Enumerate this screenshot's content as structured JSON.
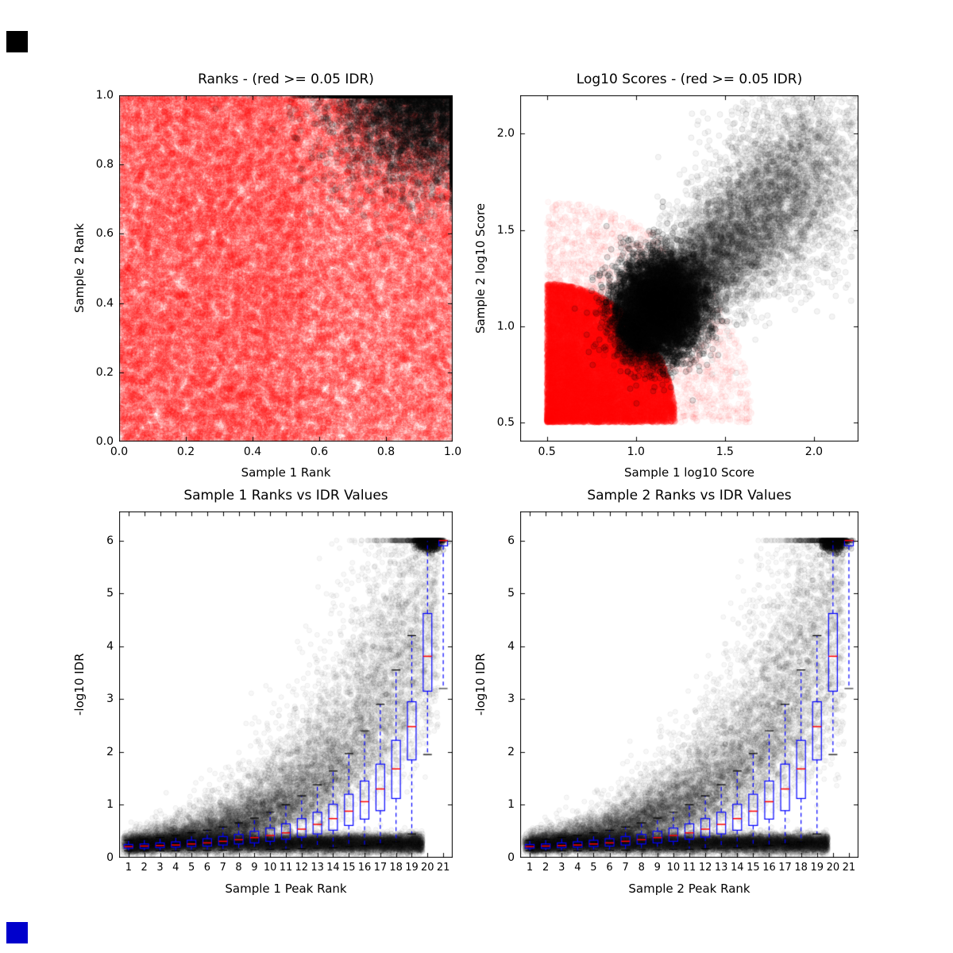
{
  "figure": {
    "background": "#ffffff",
    "text_color": "#000000",
    "decorations": [
      {
        "name": "top-left-square",
        "color": "#000000"
      },
      {
        "name": "bottom-left-square",
        "color": "#0000cc"
      }
    ]
  },
  "chart_data": [
    {
      "id": "ranks-scatter",
      "type": "scatter",
      "title": "Ranks - (red >= 0.05 IDR)",
      "xlabel": "Sample 1 Rank",
      "ylabel": "Sample 2 Rank",
      "xlim": [
        0.0,
        1.0
      ],
      "ylim": [
        0.0,
        1.0
      ],
      "grid": false,
      "legend": "none",
      "xticks": {
        "values": [
          0.0,
          0.2,
          0.4,
          0.6,
          0.8,
          1.0
        ],
        "labels": [
          "0.0",
          "0.2",
          "0.4",
          "0.6",
          "0.8",
          "1.0"
        ]
      },
      "yticks": {
        "values": [
          0.0,
          0.2,
          0.4,
          0.6,
          0.8,
          1.0
        ],
        "labels": [
          "0.0",
          "0.2",
          "0.4",
          "0.6",
          "0.8",
          "1.0"
        ]
      },
      "series": [
        {
          "name": "idr-ge-0.05-red",
          "color": "#ff0000",
          "alpha": 0.12,
          "radius": 3.5,
          "count": 28000,
          "dist": {
            "kind": "uniform",
            "xr": [
              0.0,
              1.0
            ],
            "yr": [
              0.0,
              1.0
            ]
          }
        },
        {
          "name": "idr-ge-0.05-red-dense-left",
          "color": "#ff0000",
          "alpha": 0.1,
          "radius": 3.5,
          "count": 5000,
          "dist": {
            "kind": "uniform",
            "xr": [
              0.0,
              0.55
            ],
            "yr": [
              0.0,
              1.0
            ]
          }
        },
        {
          "name": "idr-lt-0.05-black",
          "color": "#000000",
          "alpha": 0.16,
          "radius": 3.5,
          "count": 9000,
          "dist": {
            "kind": "gaussian",
            "cx": 0.93,
            "cy": 1.02,
            "sx": 0.14,
            "sy": 0.13,
            "clip": [
              0,
              1,
              0,
              1
            ]
          }
        }
      ]
    },
    {
      "id": "log10-scores-scatter",
      "type": "scatter",
      "title": "Log10 Scores - (red >= 0.05 IDR)",
      "xlabel": "Sample 1 log10 Score",
      "ylabel": "Sample 2 log10 Score",
      "xlim": [
        0.35,
        2.25
      ],
      "ylim": [
        0.4,
        2.2
      ],
      "grid": false,
      "legend": "none",
      "xticks": {
        "values": [
          0.5,
          1.0,
          1.5,
          2.0
        ],
        "labels": [
          "0.5",
          "1.0",
          "1.5",
          "2.0"
        ]
      },
      "yticks": {
        "values": [
          0.5,
          1.0,
          1.5,
          2.0
        ],
        "labels": [
          "0.5",
          "1.0",
          "1.5",
          "2.0"
        ]
      },
      "series": [
        {
          "name": "idr-ge-0.05-red-core",
          "color": "#ff0000",
          "alpha": 0.14,
          "radius": 3.5,
          "count": 20000,
          "dist": {
            "kind": "quarter_disc",
            "x0": 0.5,
            "y0": 0.5,
            "rmax": 0.72,
            "rpow": 0.6
          }
        },
        {
          "name": "idr-ge-0.05-red-fringe",
          "color": "#ff0000",
          "alpha": 0.05,
          "radius": 3.5,
          "count": 4000,
          "dist": {
            "kind": "quarter_disc",
            "x0": 0.5,
            "y0": 0.5,
            "rmax": 1.15,
            "rpow": 0.8
          }
        },
        {
          "name": "idr-lt-0.05-black-diagonal",
          "color": "#000000",
          "alpha": 0.08,
          "radius": 3.5,
          "count": 12000,
          "dist": {
            "kind": "diag",
            "x0": 0.98,
            "y0": 0.95,
            "dx": 1.08,
            "dy": 0.95,
            "tpow": 1.4,
            "s0": 0.05,
            "s1": 0.16
          }
        },
        {
          "name": "idr-lt-0.05-black-core",
          "color": "#000000",
          "alpha": 0.22,
          "radius": 3.5,
          "count": 7000,
          "dist": {
            "kind": "gaussian",
            "cx": 1.13,
            "cy": 1.1,
            "sx": 0.12,
            "sy": 0.13
          }
        }
      ]
    },
    {
      "id": "sample1-rank-vs-idr",
      "type": "scatter+boxplot",
      "title": "Sample 1 Ranks vs IDR Values",
      "xlabel": "Sample 1 Peak Rank",
      "ylabel": "-log10 IDR",
      "xlim": [
        0.4,
        21.6
      ],
      "ylim": [
        0,
        6.55
      ],
      "grid": false,
      "legend": "none",
      "xticks": {
        "values": [
          1,
          2,
          3,
          4,
          5,
          6,
          7,
          8,
          9,
          10,
          11,
          12,
          13,
          14,
          15,
          16,
          17,
          18,
          19,
          20,
          21
        ],
        "labels": [
          "1",
          "2",
          "3",
          "4",
          "5",
          "6",
          "7",
          "8",
          "9",
          "10",
          "11",
          "12",
          "13",
          "14",
          "15",
          "16",
          "17",
          "18",
          "19",
          "20",
          "21"
        ]
      },
      "yticks": {
        "values": [
          0,
          1,
          2,
          3,
          4,
          5,
          6
        ],
        "labels": [
          "0",
          "1",
          "2",
          "3",
          "4",
          "5",
          "6"
        ]
      },
      "box_style": {
        "box_color": "#0000ff",
        "median_color": "#ff0000",
        "whisker_color": "#0000ff",
        "cap_color": "#000000",
        "width": 0.55
      },
      "series": [
        {
          "name": "idr-scatter-band",
          "color": "#000000",
          "alpha": 0.06,
          "radius": 3,
          "count": 13000,
          "dist": {
            "kind": "band",
            "xr": [
              0.6,
              19.7
            ],
            "xpow": 0.85,
            "ymean": 0.27,
            "ysd": 0.085,
            "clip": [
              0.4,
              21.6,
              0.03,
              6
            ]
          }
        },
        {
          "name": "idr-scatter-curve",
          "color": "#000000",
          "alpha": 0.06,
          "radius": 3,
          "count": 12000,
          "dist": {
            "kind": "expcurve",
            "xr": [
              1,
              20.7
            ],
            "a": 0.22,
            "k": 0.165,
            "lnsd": 0.38,
            "ymax": 6
          }
        },
        {
          "name": "idr-cap-cluster",
          "color": "#000000",
          "alpha": 0.2,
          "radius": 3,
          "count": 700,
          "dist": {
            "kind": "gaussian",
            "cx": 20.05,
            "cy": 6.0,
            "sx": 0.4,
            "sy": 0.1,
            "clip": [
              18.6,
              21.4,
              5.0,
              6.0
            ]
          }
        }
      ],
      "boxes": [
        {
          "pos": 1,
          "whislo": 0.13,
          "q1": 0.18,
          "med": 0.21,
          "q3": 0.25,
          "whishi": 0.33
        },
        {
          "pos": 2,
          "whislo": 0.13,
          "q1": 0.18,
          "med": 0.22,
          "q3": 0.26,
          "whishi": 0.35
        },
        {
          "pos": 3,
          "whislo": 0.13,
          "q1": 0.19,
          "med": 0.23,
          "q3": 0.28,
          "whishi": 0.38
        },
        {
          "pos": 4,
          "whislo": 0.13,
          "q1": 0.2,
          "med": 0.24,
          "q3": 0.3,
          "whishi": 0.42
        },
        {
          "pos": 5,
          "whislo": 0.14,
          "q1": 0.21,
          "med": 0.26,
          "q3": 0.33,
          "whishi": 0.47
        },
        {
          "pos": 6,
          "whislo": 0.14,
          "q1": 0.22,
          "med": 0.28,
          "q3": 0.36,
          "whishi": 0.52
        },
        {
          "pos": 7,
          "whislo": 0.14,
          "q1": 0.24,
          "med": 0.31,
          "q3": 0.4,
          "whishi": 0.58
        },
        {
          "pos": 8,
          "whislo": 0.15,
          "q1": 0.26,
          "med": 0.34,
          "q3": 0.44,
          "whishi": 0.66
        },
        {
          "pos": 9,
          "whislo": 0.15,
          "q1": 0.28,
          "med": 0.38,
          "q3": 0.5,
          "whishi": 0.75
        },
        {
          "pos": 10,
          "whislo": 0.16,
          "q1": 0.31,
          "med": 0.42,
          "q3": 0.56,
          "whishi": 0.86
        },
        {
          "pos": 11,
          "whislo": 0.16,
          "q1": 0.35,
          "med": 0.47,
          "q3": 0.64,
          "whishi": 1.0
        },
        {
          "pos": 12,
          "whislo": 0.17,
          "q1": 0.39,
          "med": 0.54,
          "q3": 0.74,
          "whishi": 1.17
        },
        {
          "pos": 13,
          "whislo": 0.18,
          "q1": 0.45,
          "med": 0.63,
          "q3": 0.86,
          "whishi": 1.38
        },
        {
          "pos": 14,
          "whislo": 0.19,
          "q1": 0.52,
          "med": 0.74,
          "q3": 1.01,
          "whishi": 1.64
        },
        {
          "pos": 15,
          "whislo": 0.21,
          "q1": 0.61,
          "med": 0.88,
          "q3": 1.2,
          "whishi": 1.97
        },
        {
          "pos": 16,
          "whislo": 0.23,
          "q1": 0.73,
          "med": 1.06,
          "q3": 1.45,
          "whishi": 2.4
        },
        {
          "pos": 17,
          "whislo": 0.26,
          "q1": 0.89,
          "med": 1.3,
          "q3": 1.77,
          "whishi": 2.9
        },
        {
          "pos": 18,
          "whislo": 0.3,
          "q1": 1.12,
          "med": 1.68,
          "q3": 2.22,
          "whishi": 3.55
        },
        {
          "pos": 19,
          "whislo": 0.45,
          "q1": 1.85,
          "med": 2.48,
          "q3": 2.95,
          "whishi": 4.2
        },
        {
          "pos": 20,
          "whislo": 1.95,
          "q1": 3.15,
          "med": 3.81,
          "q3": 4.62,
          "whishi": 6.0
        },
        {
          "pos": 21,
          "whislo": 3.2,
          "q1": 5.9,
          "med": 6.0,
          "q3": 6.0,
          "whishi": 6.0
        }
      ]
    },
    {
      "id": "sample2-rank-vs-idr",
      "type": "scatter+boxplot",
      "title": "Sample 2 Ranks vs IDR Values",
      "xlabel": "Sample 2 Peak Rank",
      "ylabel": "-log10 IDR",
      "xlim": [
        0.4,
        21.6
      ],
      "ylim": [
        0,
        6.55
      ],
      "grid": false,
      "legend": "none",
      "xticks": {
        "values": [
          1,
          2,
          3,
          4,
          5,
          6,
          7,
          8,
          9,
          10,
          11,
          12,
          13,
          14,
          15,
          16,
          17,
          18,
          19,
          20,
          21
        ],
        "labels": [
          "1",
          "2",
          "3",
          "4",
          "5",
          "6",
          "7",
          "8",
          "9",
          "10",
          "11",
          "12",
          "13",
          "14",
          "15",
          "16",
          "17",
          "18",
          "19",
          "20",
          "21"
        ]
      },
      "yticks": {
        "values": [
          0,
          1,
          2,
          3,
          4,
          5,
          6
        ],
        "labels": [
          "0",
          "1",
          "2",
          "3",
          "4",
          "5",
          "6"
        ]
      },
      "box_style": {
        "box_color": "#0000ff",
        "median_color": "#ff0000",
        "whisker_color": "#0000ff",
        "cap_color": "#000000",
        "width": 0.55
      },
      "series": [
        {
          "name": "idr-scatter-band",
          "color": "#000000",
          "alpha": 0.06,
          "radius": 3,
          "count": 13000,
          "dist": {
            "kind": "band",
            "xr": [
              0.6,
              19.7
            ],
            "xpow": 0.85,
            "ymean": 0.27,
            "ysd": 0.085,
            "clip": [
              0.4,
              21.6,
              0.03,
              6
            ]
          }
        },
        {
          "name": "idr-scatter-curve",
          "color": "#000000",
          "alpha": 0.06,
          "radius": 3,
          "count": 12000,
          "dist": {
            "kind": "expcurve",
            "xr": [
              1,
              20.7
            ],
            "a": 0.22,
            "k": 0.165,
            "lnsd": 0.38,
            "ymax": 6
          }
        },
        {
          "name": "idr-cap-cluster",
          "color": "#000000",
          "alpha": 0.2,
          "radius": 3,
          "count": 700,
          "dist": {
            "kind": "gaussian",
            "cx": 20.05,
            "cy": 6.0,
            "sx": 0.4,
            "sy": 0.1,
            "clip": [
              18.6,
              21.4,
              5.0,
              6.0
            ]
          }
        }
      ],
      "boxes": [
        {
          "pos": 1,
          "whislo": 0.13,
          "q1": 0.18,
          "med": 0.21,
          "q3": 0.25,
          "whishi": 0.33
        },
        {
          "pos": 2,
          "whislo": 0.13,
          "q1": 0.18,
          "med": 0.22,
          "q3": 0.26,
          "whishi": 0.35
        },
        {
          "pos": 3,
          "whislo": 0.13,
          "q1": 0.19,
          "med": 0.23,
          "q3": 0.28,
          "whishi": 0.38
        },
        {
          "pos": 4,
          "whislo": 0.13,
          "q1": 0.2,
          "med": 0.24,
          "q3": 0.3,
          "whishi": 0.42
        },
        {
          "pos": 5,
          "whislo": 0.14,
          "q1": 0.21,
          "med": 0.26,
          "q3": 0.33,
          "whishi": 0.47
        },
        {
          "pos": 6,
          "whislo": 0.14,
          "q1": 0.22,
          "med": 0.28,
          "q3": 0.36,
          "whishi": 0.52
        },
        {
          "pos": 7,
          "whislo": 0.14,
          "q1": 0.24,
          "med": 0.31,
          "q3": 0.4,
          "whishi": 0.58
        },
        {
          "pos": 8,
          "whislo": 0.15,
          "q1": 0.26,
          "med": 0.34,
          "q3": 0.44,
          "whishi": 0.66
        },
        {
          "pos": 9,
          "whislo": 0.15,
          "q1": 0.28,
          "med": 0.38,
          "q3": 0.5,
          "whishi": 0.75
        },
        {
          "pos": 10,
          "whislo": 0.16,
          "q1": 0.31,
          "med": 0.42,
          "q3": 0.56,
          "whishi": 0.86
        },
        {
          "pos": 11,
          "whislo": 0.16,
          "q1": 0.35,
          "med": 0.47,
          "q3": 0.64,
          "whishi": 1.0
        },
        {
          "pos": 12,
          "whislo": 0.17,
          "q1": 0.39,
          "med": 0.54,
          "q3": 0.74,
          "whishi": 1.17
        },
        {
          "pos": 13,
          "whislo": 0.18,
          "q1": 0.45,
          "med": 0.63,
          "q3": 0.86,
          "whishi": 1.38
        },
        {
          "pos": 14,
          "whislo": 0.19,
          "q1": 0.52,
          "med": 0.74,
          "q3": 1.01,
          "whishi": 1.64
        },
        {
          "pos": 15,
          "whislo": 0.21,
          "q1": 0.61,
          "med": 0.88,
          "q3": 1.2,
          "whishi": 1.97
        },
        {
          "pos": 16,
          "whislo": 0.23,
          "q1": 0.73,
          "med": 1.06,
          "q3": 1.45,
          "whishi": 2.4
        },
        {
          "pos": 17,
          "whislo": 0.26,
          "q1": 0.89,
          "med": 1.3,
          "q3": 1.77,
          "whishi": 2.9
        },
        {
          "pos": 18,
          "whislo": 0.3,
          "q1": 1.12,
          "med": 1.68,
          "q3": 2.22,
          "whishi": 3.55
        },
        {
          "pos": 19,
          "whislo": 0.45,
          "q1": 1.85,
          "med": 2.48,
          "q3": 2.95,
          "whishi": 4.2
        },
        {
          "pos": 20,
          "whislo": 1.95,
          "q1": 3.15,
          "med": 3.81,
          "q3": 4.62,
          "whishi": 6.0
        },
        {
          "pos": 21,
          "whislo": 3.2,
          "q1": 5.9,
          "med": 6.0,
          "q3": 6.0,
          "whishi": 6.0
        }
      ]
    }
  ]
}
